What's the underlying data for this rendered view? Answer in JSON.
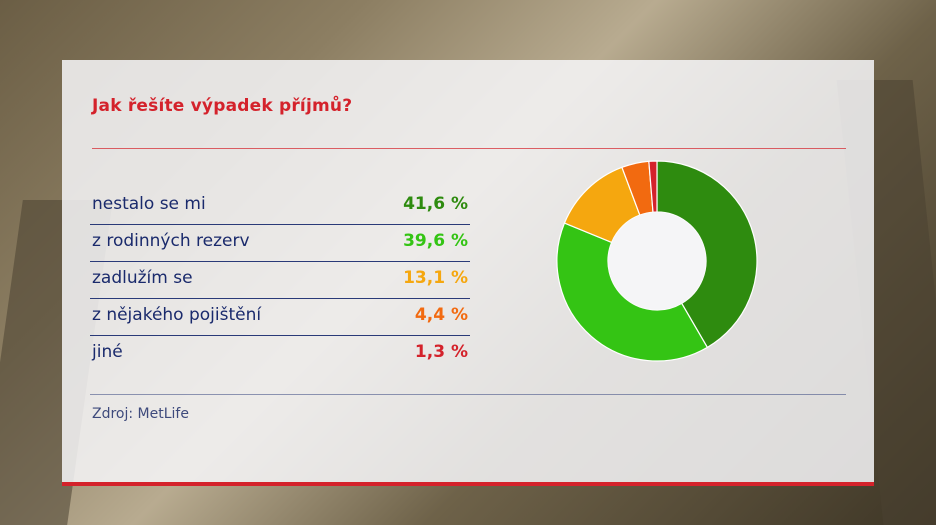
{
  "chart_data": {
    "type": "pie",
    "title": "Jak řešíte výpadek příjmů?",
    "categories": [
      "nestalo se mi",
      "z rodinných rezerv",
      "zadlužím se",
      "z nějakého pojištění",
      "jiné"
    ],
    "values": [
      41.6,
      39.6,
      13.1,
      4.4,
      1.3
    ],
    "value_labels": [
      "41,6 %",
      "39,6 %",
      "13,1 %",
      "4,4 %",
      "1,3 %"
    ],
    "colors": [
      "#2e8b0f",
      "#34c414",
      "#f5a70f",
      "#f26a10",
      "#d4222b"
    ],
    "source": "Zdroj: MetLife"
  }
}
